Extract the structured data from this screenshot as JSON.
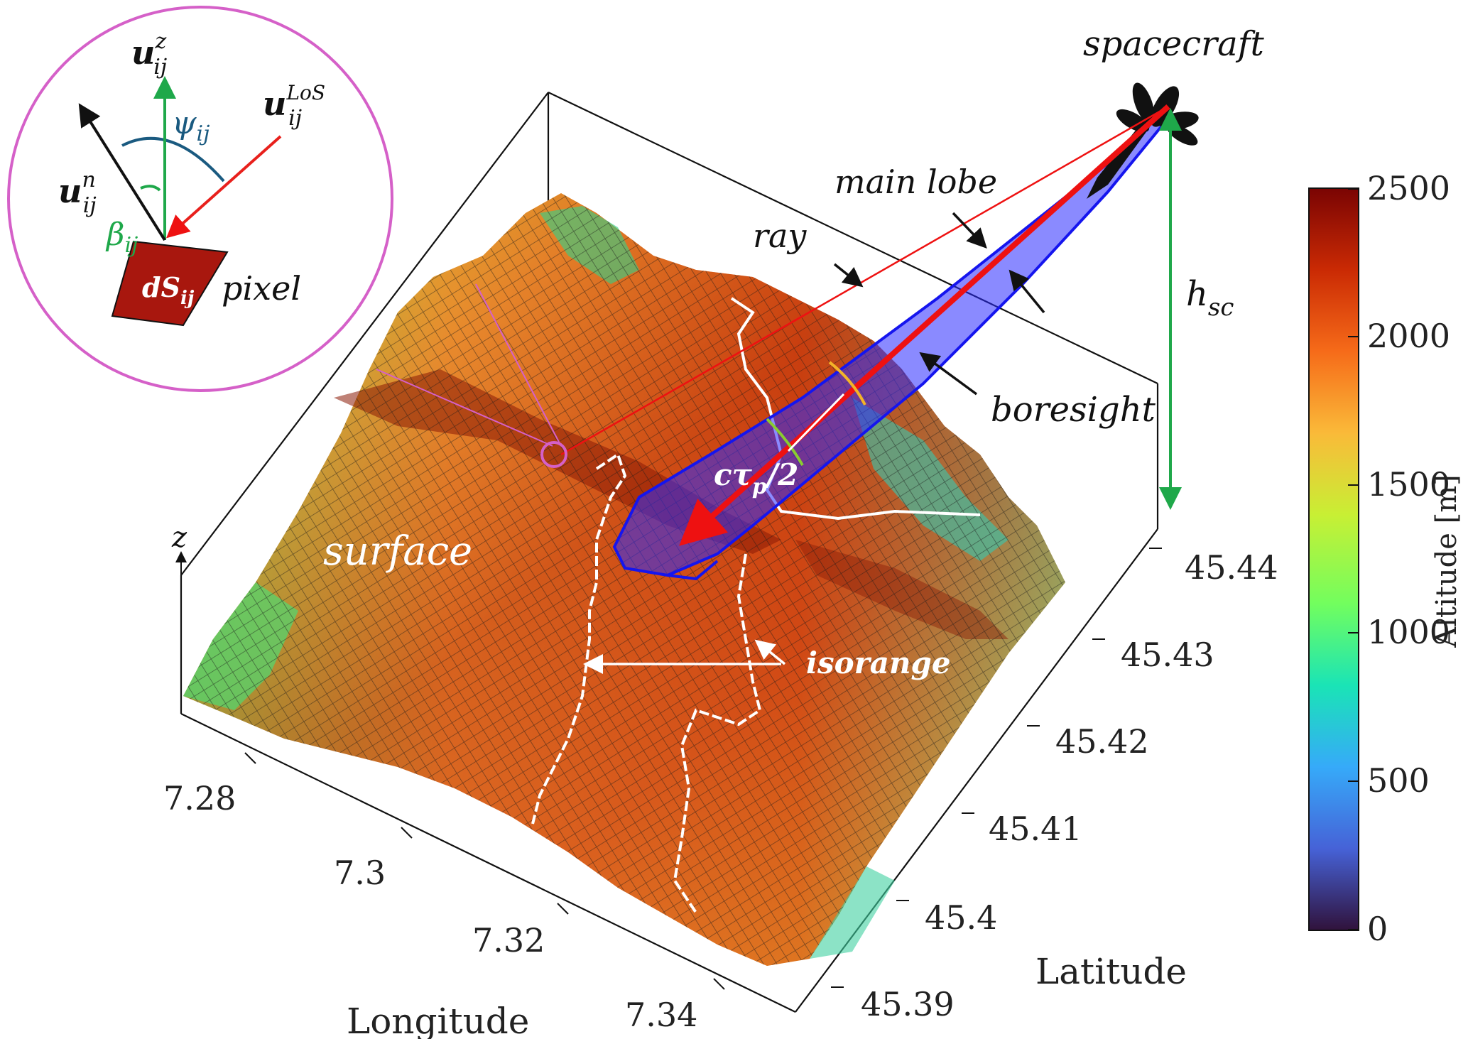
{
  "labels": {
    "spacecraft": "spacecraft",
    "main_lobe": "main lobe",
    "ray": "ray",
    "boresight": "boresight",
    "h_sc": "h",
    "h_sc_sub": "sc",
    "surface": "surface",
    "isorange": "isorange",
    "pulse_width": "cτ",
    "pulse_width_sub": "p",
    "pulse_width_tail": "/2",
    "pixel": "pixel",
    "z_axis": "z"
  },
  "inset": {
    "u_z": "u",
    "u_z_sup": "z",
    "u_n": "u",
    "u_n_sup": "n",
    "u_los": "u",
    "u_los_sup": "LoS",
    "sub_ij": "ij",
    "psi": "ψ",
    "beta": "β",
    "dS": "dS",
    "colors": {
      "u_z": "#1fa84a",
      "u_los": "#e8201c",
      "u_n": "#111111",
      "psi_arc": "#1a5a80",
      "beta_arc": "#1fa84a",
      "border": "#d560c8",
      "pixel_fill": "#a8170e"
    }
  },
  "axes": {
    "longitude_label": "Longitude",
    "latitude_label": "Latitude",
    "longitude_ticks": [
      "7.28",
      "7.3",
      "7.32",
      "7.34"
    ],
    "latitude_ticks": [
      "45.39",
      "45.4",
      "45.41",
      "45.42",
      "45.43",
      "45.44"
    ]
  },
  "colorbar": {
    "label": "Altitude [m]",
    "ticks": [
      "0",
      "500",
      "1000",
      "1500",
      "2000",
      "2500"
    ],
    "range": [
      0,
      2500
    ],
    "colormap": [
      "#30123b",
      "#4662d7",
      "#36aaf9",
      "#1ae4b6",
      "#72fe5e",
      "#c8ef34",
      "#faba39",
      "#f66b19",
      "#ca2a04",
      "#7a0403"
    ]
  },
  "colors": {
    "beam": "#2a2aff",
    "boresight_arrow": "#ee1111",
    "ray": "#ee1111",
    "h_sc_arrow": "#1fa84a",
    "isorange": "#ffffff"
  }
}
